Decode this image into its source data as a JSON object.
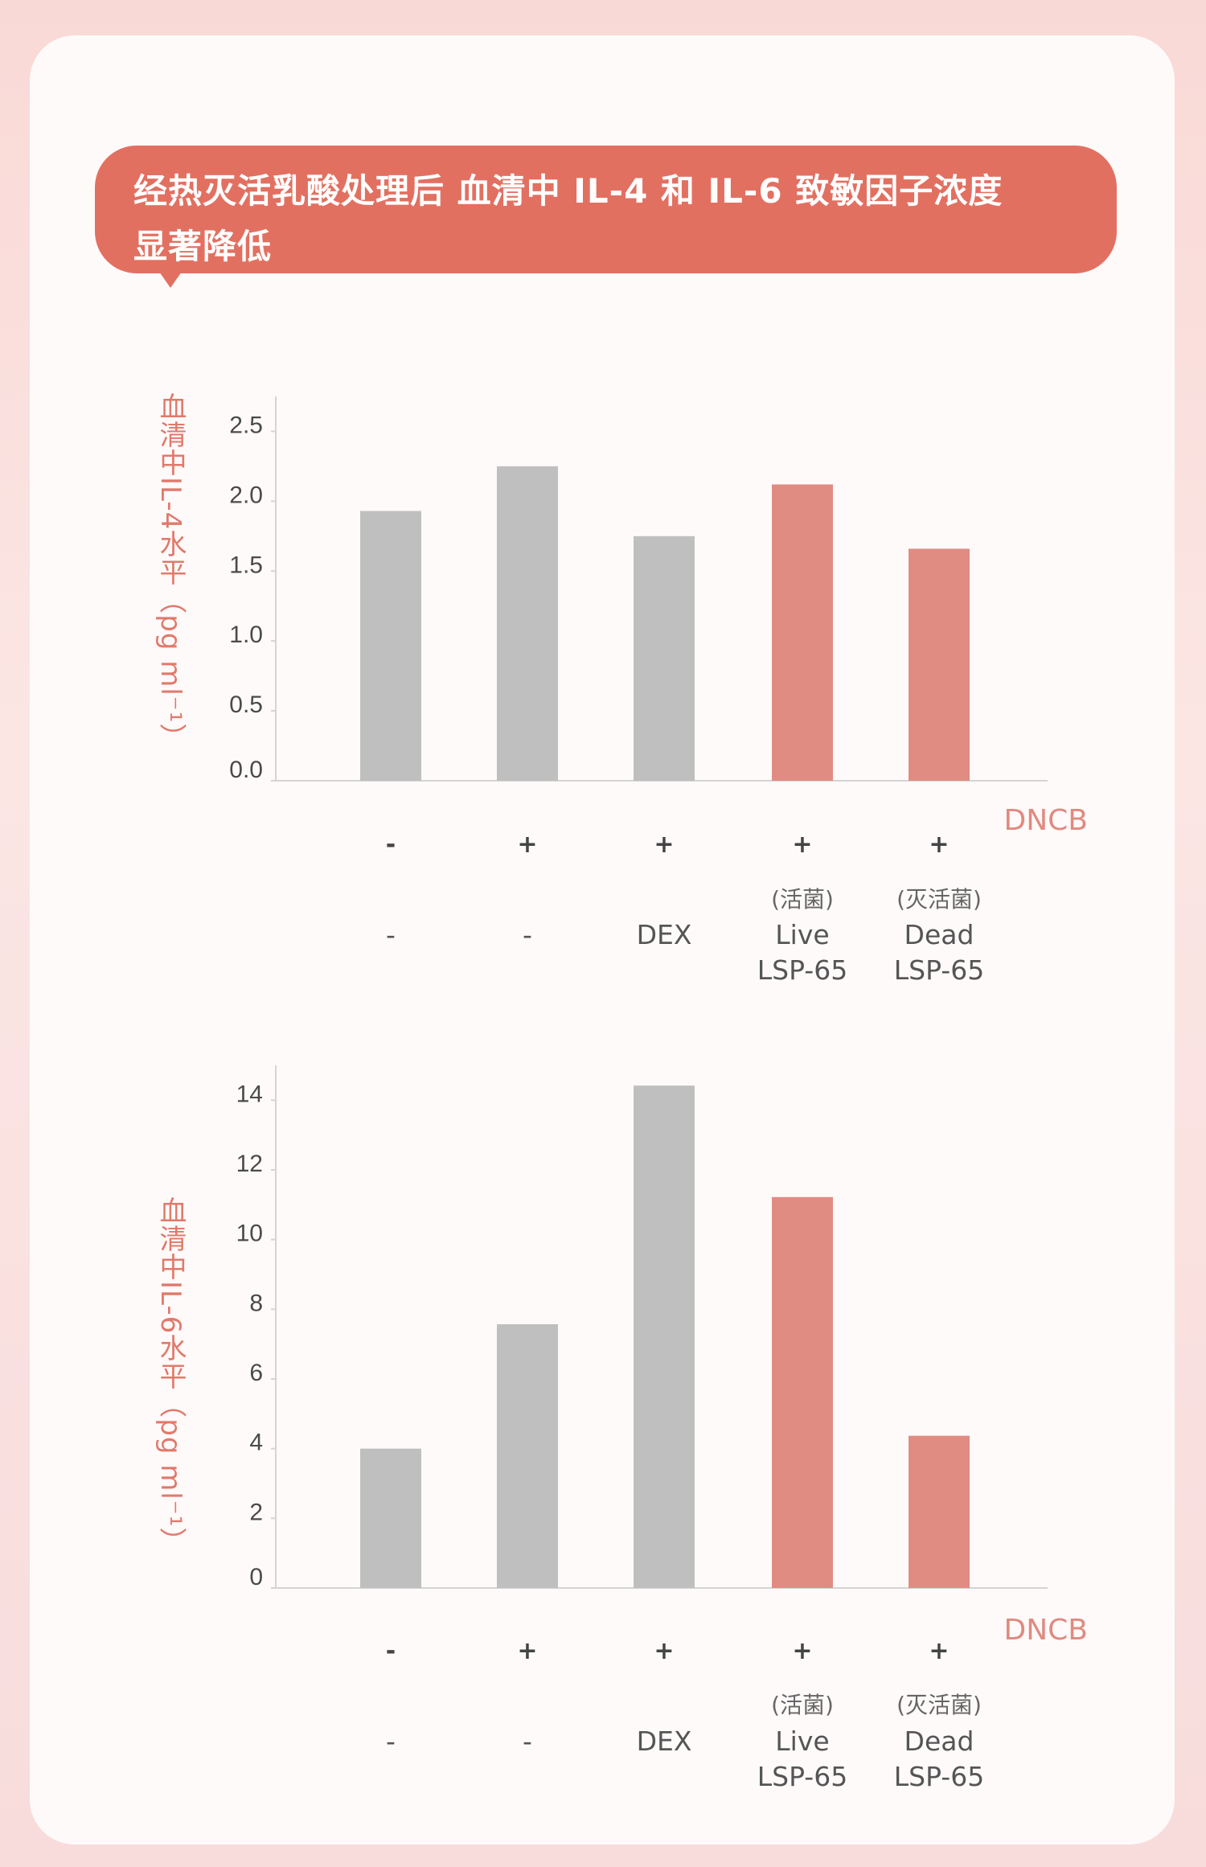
{
  "header": {
    "title_line1": "经热灭活乳酸处理后 血清中 IL-4 和 IL-6 致敏因子浓度",
    "title_line2": "显著降低"
  },
  "colors": {
    "bubble": "#e27061",
    "gray_bar": "#bfbfbf",
    "pink_bar": "#e08c83",
    "label": "#e07a6b"
  },
  "chart_data": [
    {
      "type": "bar",
      "title": "",
      "ylabel": "血清中IL-4水平（pg ml⁻¹）",
      "xlabel": "DNCB",
      "ylim": [
        0,
        2.75
      ],
      "yticks": [
        "0.0",
        "0.5",
        "1.0",
        "1.5",
        "2.0",
        "2.5"
      ],
      "ytick_values": [
        0,
        0.5,
        1.0,
        1.5,
        2.0,
        2.5
      ],
      "categories": [
        "-/-",
        "+/-",
        "+/DEX",
        "+/Live LSP-65",
        "+/Dead LSP-65"
      ],
      "dncb": [
        "-",
        "+",
        "+",
        "+",
        "+"
      ],
      "treatment_note": [
        "",
        "",
        "",
        "(活菌)",
        "(灭活菌)"
      ],
      "treatment_line1": [
        "-",
        "-",
        "DEX",
        "Live",
        "Dead"
      ],
      "treatment_line2": [
        "",
        "",
        "",
        "LSP-65",
        "LSP-65"
      ],
      "values": [
        1.93,
        2.25,
        1.75,
        2.12,
        1.66
      ],
      "bar_colors": [
        "gray",
        "gray",
        "gray",
        "pink",
        "pink"
      ],
      "grid": false
    },
    {
      "type": "bar",
      "title": "",
      "ylabel": "血清中IL-6水平（pg ml⁻¹）",
      "xlabel": "DNCB",
      "ylim": [
        0,
        15
      ],
      "yticks": [
        "0",
        "2",
        "4",
        "6",
        "8",
        "10",
        "12",
        "14"
      ],
      "ytick_values": [
        0,
        2,
        4,
        6,
        8,
        10,
        12,
        14
      ],
      "categories": [
        "-/-",
        "+/-",
        "+/DEX",
        "+/Live LSP-65",
        "+/Dead LSP-65"
      ],
      "dncb": [
        "-",
        "+",
        "+",
        "+",
        "+"
      ],
      "treatment_note": [
        "",
        "",
        "",
        "(活菌)",
        "(灭活菌)"
      ],
      "treatment_line1": [
        "-",
        "-",
        "DEX",
        "Live",
        "Dead"
      ],
      "treatment_line2": [
        "",
        "",
        "",
        "LSP-65",
        "LSP-65"
      ],
      "values": [
        4.0,
        7.57,
        14.42,
        11.22,
        4.37
      ],
      "bar_colors": [
        "gray",
        "gray",
        "gray",
        "pink",
        "pink"
      ],
      "grid": false
    }
  ]
}
